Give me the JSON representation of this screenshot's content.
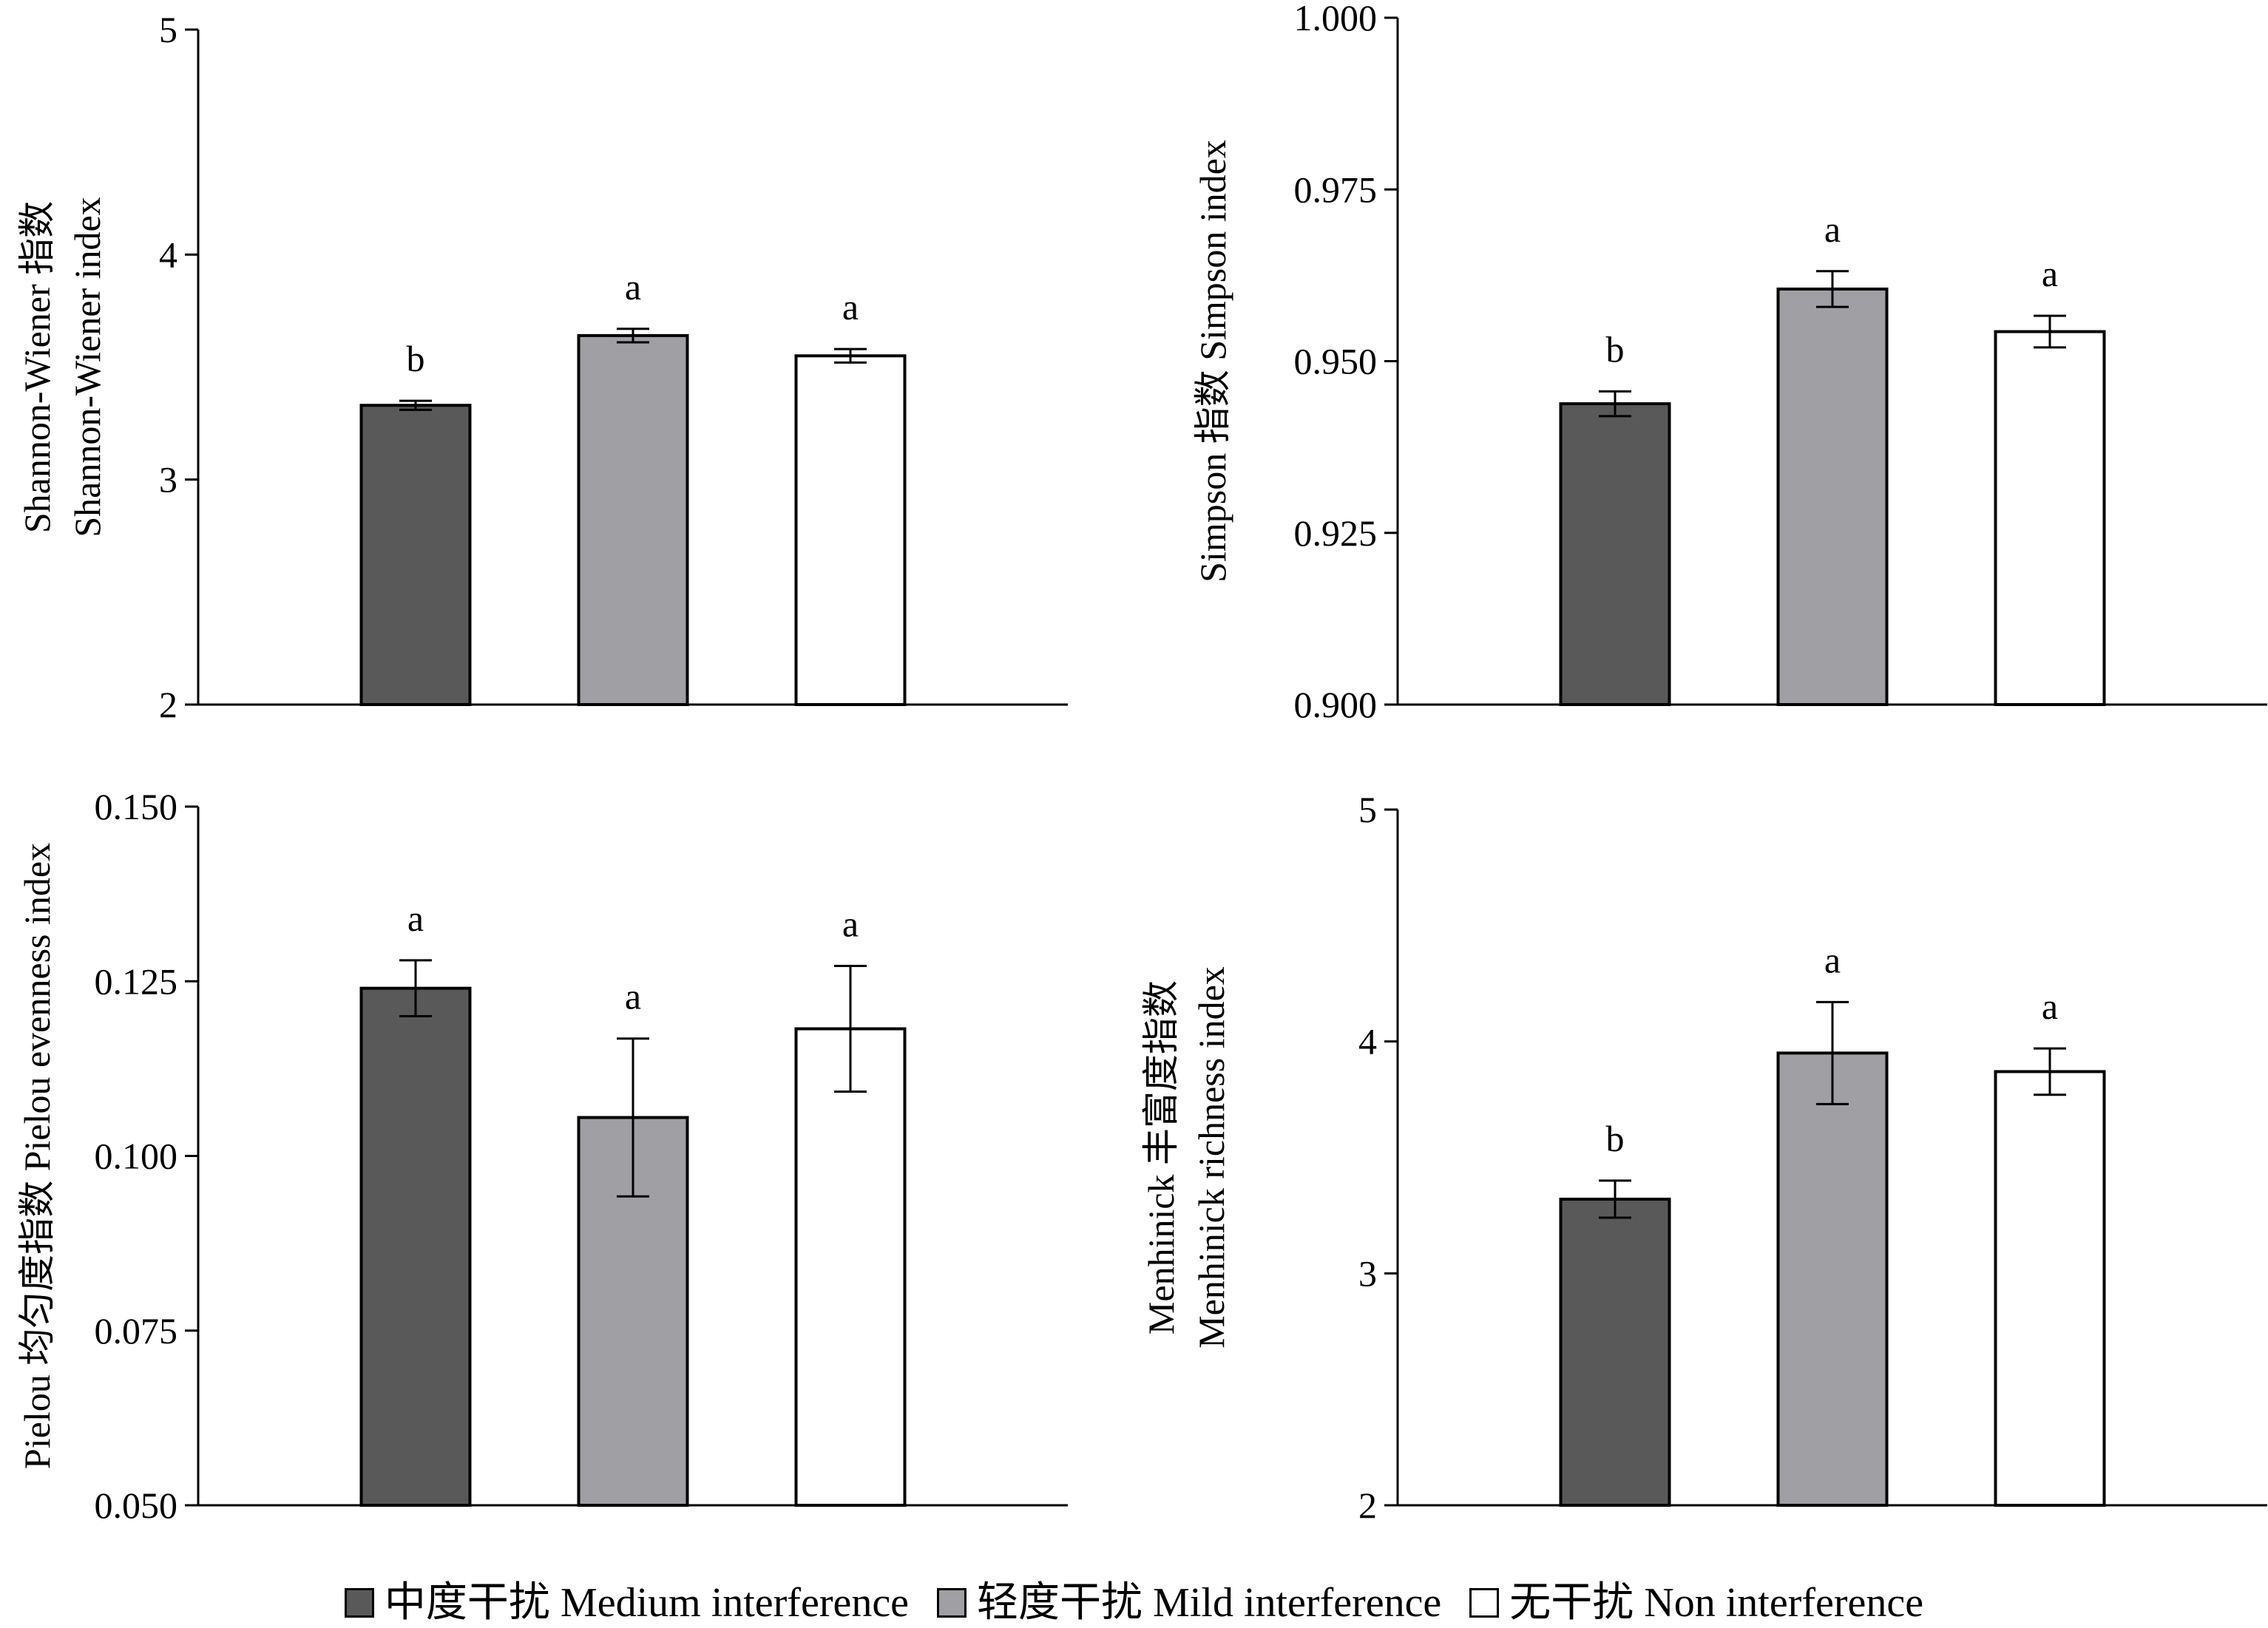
{
  "colors": {
    "Medium interference": "#595959",
    "Mild interference": "#a09fa4",
    "Non interference": "#ffffff"
  },
  "legend": {
    "items": [
      {
        "label": "中度干扰 Medium interference",
        "color": "#595959"
      },
      {
        "label": "轻度干扰 Mild interference",
        "color": "#a09fa4"
      },
      {
        "label": "无干扰 Non interference",
        "color": "#ffffff"
      }
    ]
  },
  "chart_data": [
    {
      "type": "bar",
      "title": "",
      "xlabel": "",
      "ylabel": [
        "Shannon-Wiener 指数",
        "Shannon-Wiener index"
      ],
      "categories": [
        "Medium interference",
        "Mild interference",
        "Non interference"
      ],
      "values": [
        3.33,
        3.64,
        3.55
      ],
      "errors": [
        0.02,
        0.03,
        0.03
      ],
      "significance": [
        "b",
        "a",
        "a"
      ],
      "ylim": [
        2,
        5
      ],
      "yticks": [
        2,
        3,
        4,
        5
      ],
      "ytick_labels": [
        "2",
        "3",
        "4",
        "5"
      ],
      "grid": false
    },
    {
      "type": "bar",
      "title": "",
      "xlabel": "",
      "ylabel": [
        "Simpson 指数 Simpson index"
      ],
      "categories": [
        "Medium interference",
        "Mild interference",
        "Non interference"
      ],
      "values": [
        0.9438,
        0.9605,
        0.9543
      ],
      "errors": [
        0.0018,
        0.0026,
        0.0023
      ],
      "significance": [
        "b",
        "a",
        "a"
      ],
      "ylim": [
        0.9,
        1.0
      ],
      "yticks": [
        0.9,
        0.925,
        0.95,
        0.975,
        1.0
      ],
      "ytick_labels": [
        "0.900",
        "0.925",
        "0.950",
        "0.975",
        "1.000"
      ],
      "grid": false
    },
    {
      "type": "bar",
      "title": "",
      "xlabel": "",
      "ylabel": [
        "Pielou 均匀度指数 Pielou evenness index"
      ],
      "categories": [
        "Medium interference",
        "Mild interference",
        "Non interference"
      ],
      "values": [
        0.124,
        0.1055,
        0.1182
      ],
      "errors": [
        0.004,
        0.0113,
        0.009
      ],
      "significance": [
        "a",
        "a",
        "a"
      ],
      "ylim": [
        0.05,
        0.15
      ],
      "yticks": [
        0.05,
        0.075,
        0.1,
        0.125,
        0.15
      ],
      "ytick_labels": [
        "0.050",
        "0.075",
        "0.100",
        "0.125",
        "0.150"
      ],
      "grid": false
    },
    {
      "type": "bar",
      "title": "",
      "xlabel": "",
      "ylabel": [
        "Menhinick 丰富度指数",
        "Menhinick richness index"
      ],
      "categories": [
        "Medium interference",
        "Mild interference",
        "Non interference"
      ],
      "values": [
        3.32,
        3.95,
        3.87
      ],
      "errors": [
        0.08,
        0.22,
        0.1
      ],
      "significance": [
        "b",
        "a",
        "a"
      ],
      "ylim": [
        2,
        5
      ],
      "yticks": [
        2,
        3,
        4,
        5
      ],
      "ytick_labels": [
        "2",
        "3",
        "4",
        "5"
      ],
      "grid": false
    }
  ]
}
